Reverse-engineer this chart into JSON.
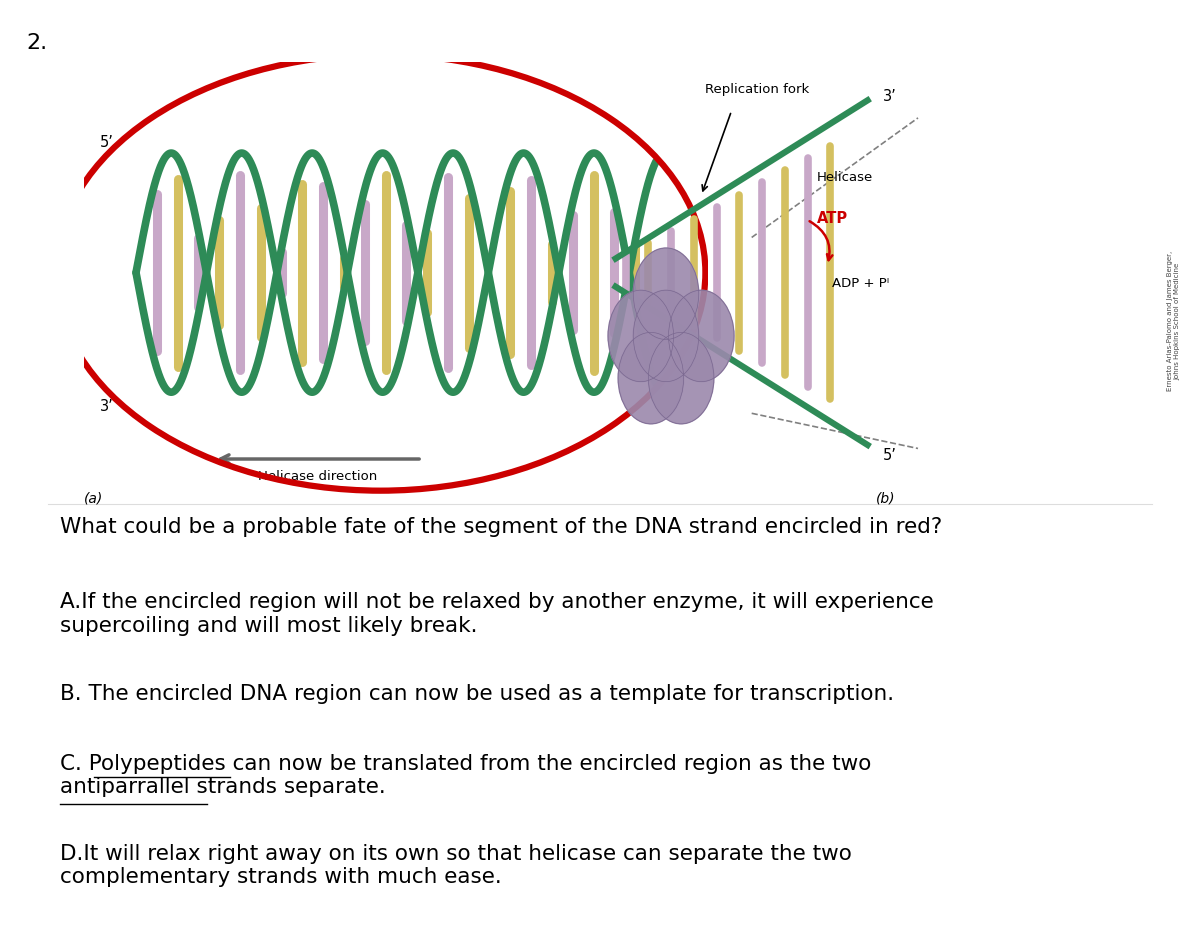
{
  "background_color": "#ffffff",
  "question_number": "2.",
  "question_number_fontsize": 16,
  "question_text": "What could be a probable fate of the segment of the DNA strand encircled in red?",
  "question_fontsize": 15.5,
  "answer_a_text": "A.If the encircled region will not be relaxed by another enzyme, it will experience\nsupercoiling and will most likely break.",
  "answer_b_text": "B. The encircled DNA region can now be used as a template for transcription.",
  "answer_c_line1_pre": "C. ",
  "answer_c_underlined1": "Polypeptides",
  "answer_c_line1_post": " can now be translated from the encircled region as the two",
  "answer_c_underlined2": "antiparrallel",
  "answer_c_line2_post": " strands separate.",
  "answer_d_text": "D.It will relax right away on its own so that helicase can separate the two\ncomplementary strands with much ease.",
  "answer_fontsize": 15.5,
  "dna_helix_colors": {
    "strand_dark_green": "#2E8B57",
    "strand_light_green": "#90EE90",
    "rung_purple": "#C8A8C8",
    "rung_yellow": "#D4C060",
    "red_circle": "#CC0000"
  },
  "labels": {
    "replication_fork": "Replication fork",
    "three_prime_top": "3’",
    "helicase": "Helicase",
    "atp": "ATP",
    "adp": "ADP + Pᴵ",
    "helicase_dir": "Helicase direction",
    "five_prime_left": "5’",
    "three_prime_left": "3’",
    "five_prime_right": "5’",
    "label_a": "(a)",
    "label_b": "(b)",
    "credit": "Ernesto Arias-Palomo and James Berger,\nJohns Hopkins School of Medicine"
  }
}
